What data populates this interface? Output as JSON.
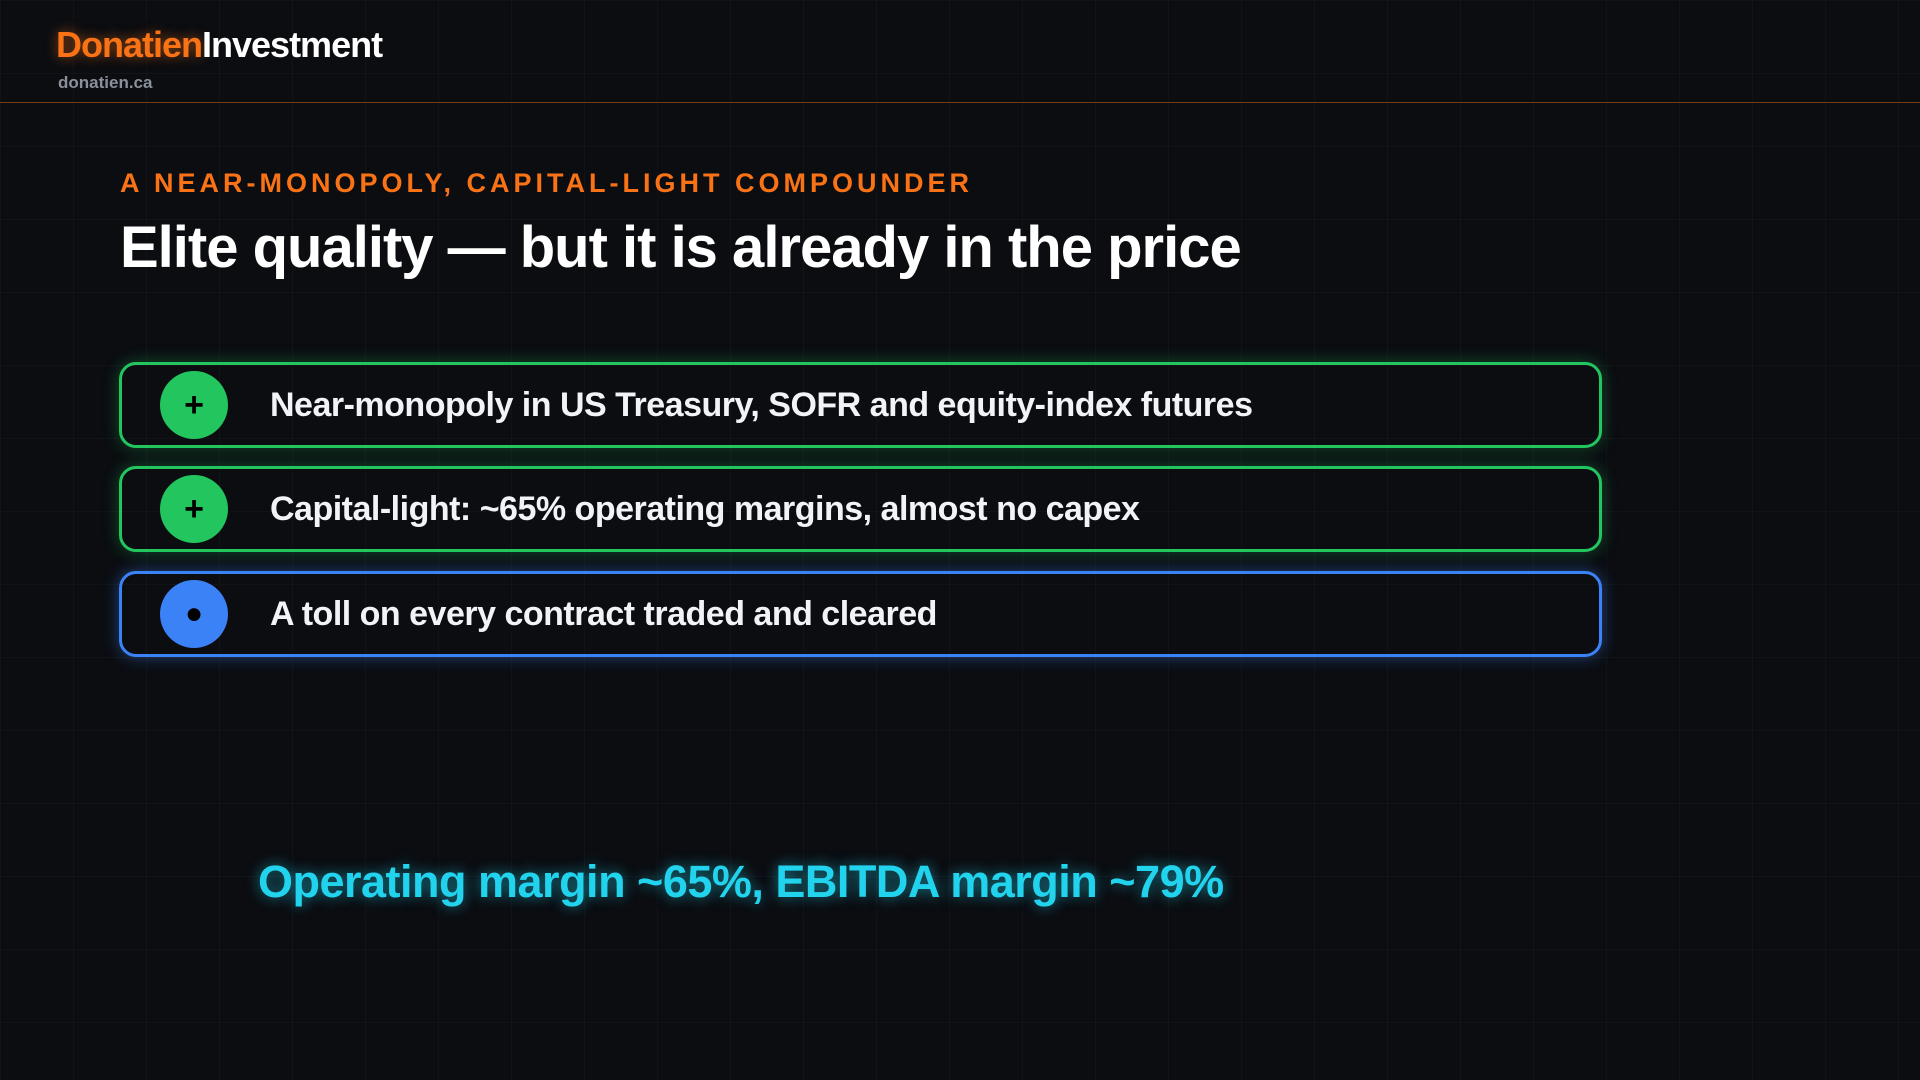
{
  "header": {
    "brand_first": "Donatien",
    "brand_second": "Investment",
    "site": "donatien.ca"
  },
  "kicker": "A NEAR-MONOPOLY, CAPITAL-LIGHT COMPOUNDER",
  "title": "Elite quality — but it is already in the price",
  "items": [
    {
      "icon": "+",
      "text": "Near-monopoly in US Treasury, SOFR and equity-index futures"
    },
    {
      "icon": "+",
      "text": "Capital-light: ~65% operating margins, almost no capex"
    },
    {
      "icon": "●",
      "text": "A toll on every contract traded and cleared"
    }
  ],
  "highlight": "Operating margin ~65%, EBITDA margin ~79%"
}
